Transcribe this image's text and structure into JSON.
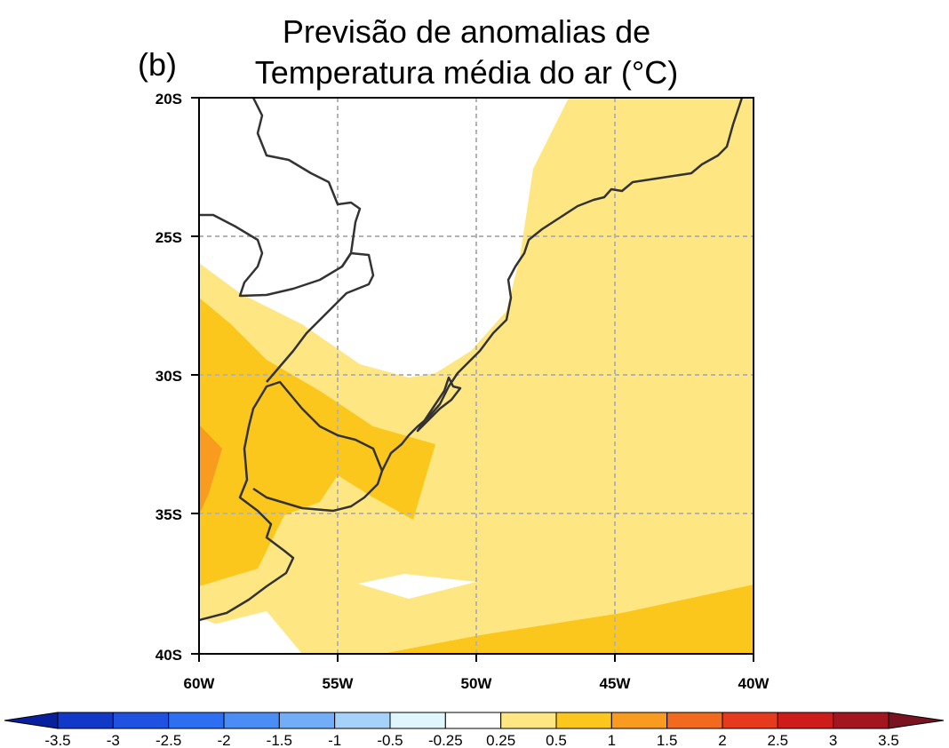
{
  "panel_label": "(b)",
  "title_line1": "Previsão de anomalias de",
  "title_line2": "Temperatura média do ar (°C)",
  "map": {
    "lat_ticks": [
      "20S",
      "25S",
      "30S",
      "35S",
      "40S"
    ],
    "lon_ticks": [
      "60W",
      "55W",
      "50W",
      "45W",
      "40W"
    ],
    "lat_range": [
      -40,
      -20
    ],
    "lon_range": [
      -60,
      -40
    ],
    "gridlines": "dashed grey"
  },
  "colorbar": {
    "labels": [
      "-3.5",
      "-3",
      "-2.5",
      "-2",
      "-1.5",
      "-1",
      "-0.5",
      "-0.25",
      "0.25",
      "0.5",
      "1",
      "1.5",
      "2",
      "2.5",
      "3",
      "3.5"
    ],
    "colors": [
      "#08209e",
      "#1238c8",
      "#1f52e0",
      "#2e6ef0",
      "#4a8df5",
      "#72aef7",
      "#a6d2fa",
      "#e0f6fd",
      "#ffffff",
      "#fee783",
      "#fcc71c",
      "#f99b1e",
      "#f26a1d",
      "#e53a1c",
      "#cc1d1b",
      "#a31620",
      "#7a1220"
    ],
    "units": "°C"
  },
  "fill_colors": {
    "class_0_25_0_5": "#fee783",
    "class_0_5_1": "#fcc71c",
    "class_1_1_5": "#f99b1e"
  }
}
